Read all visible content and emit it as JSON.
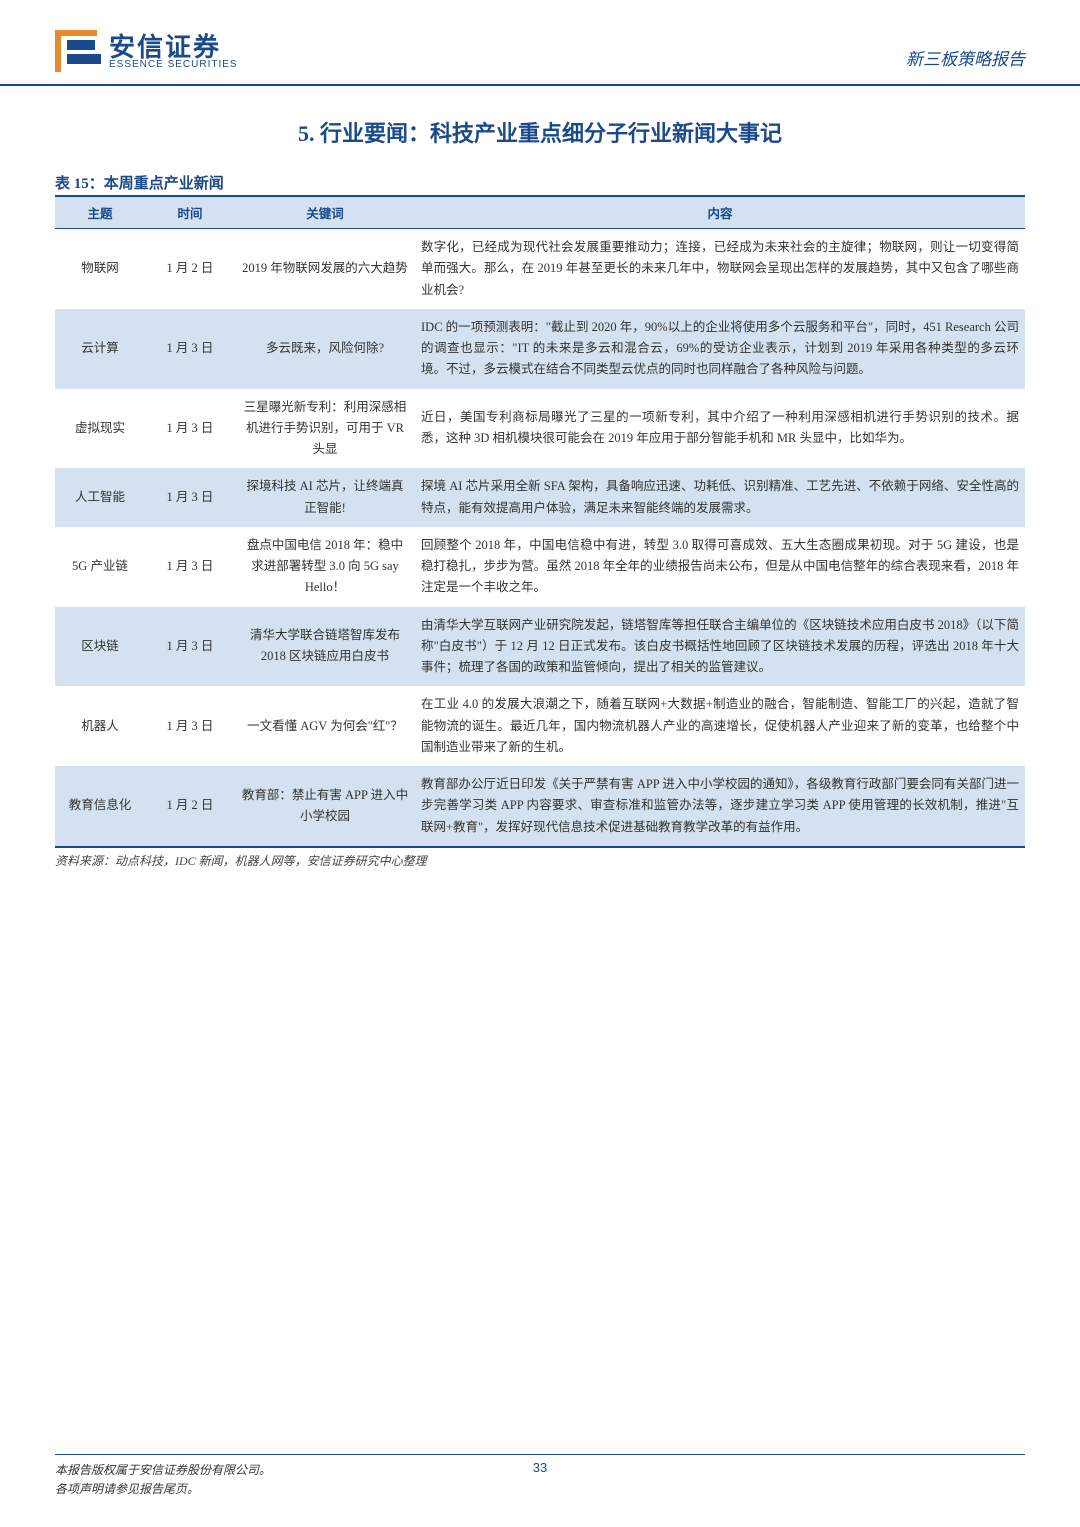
{
  "header": {
    "logo_cn": "安信证券",
    "logo_en": "ESSENCE SECURITIES",
    "doc_type": "新三板策略报告"
  },
  "section": {
    "number": "5.",
    "title": "行业要闻：科技产业重点细分子行业新闻大事记"
  },
  "table": {
    "caption_prefix": "表 15：",
    "caption": "本周重点产业新闻",
    "columns": [
      "主题",
      "时间",
      "关键词",
      "内容"
    ],
    "rows": [
      {
        "topic": "物联网",
        "date": "1 月 2 日",
        "keyword": "2019 年物联网发展的六大趋势",
        "content": "数字化，已经成为现代社会发展重要推动力；连接，已经成为未来社会的主旋律；物联网，则让一切变得简单而强大。那么，在 2019 年甚至更长的未来几年中，物联网会呈现出怎样的发展趋势，其中又包含了哪些商业机会?"
      },
      {
        "topic": "云计算",
        "date": "1 月 3 日",
        "keyword": "多云既来，风险何除?",
        "content": "IDC 的一项预测表明：\"截止到 2020 年，90%以上的企业将使用多个云服务和平台\"，同时，451 Research 公司的调查也显示：\"IT 的未来是多云和混合云，69%的受访企业表示，计划到 2019 年采用各种类型的多云环境。不过，多云模式在结合不同类型云优点的同时也同样融合了各种风险与问题。"
      },
      {
        "topic": "虚拟现实",
        "date": "1 月 3 日",
        "keyword": "三星曝光新专利：利用深感相机进行手势识别，可用于 VR 头显",
        "content": "近日，美国专利商标局曝光了三星的一项新专利，其中介绍了一种利用深感相机进行手势识别的技术。据悉，这种 3D 相机模块很可能会在 2019 年应用于部分智能手机和 MR 头显中，比如华为。"
      },
      {
        "topic": "人工智能",
        "date": "1 月 3 日",
        "keyword": "探境科技 AI 芯片，让终端真正智能!",
        "content": "探境 AI 芯片采用全新 SFA 架构，具备响应迅速、功耗低、识别精准、工艺先进、不依赖于网络、安全性高的特点，能有效提高用户体验，满足未来智能终端的发展需求。"
      },
      {
        "topic": "5G 产业链",
        "date": "1 月 3 日",
        "keyword": "盘点中国电信 2018 年：稳中求进部署转型 3.0 向 5G say Hello！",
        "content": "回顾整个 2018 年，中国电信稳中有进，转型 3.0 取得可喜成效、五大生态圈成果初现。对于 5G 建设，也是稳打稳扎，步步为营。虽然 2018 年全年的业绩报告尚未公布，但是从中国电信整年的综合表现来看，2018 年注定是一个丰收之年。"
      },
      {
        "topic": "区块链",
        "date": "1 月 3 日",
        "keyword": "清华大学联合链塔智库发布 2018 区块链应用白皮书",
        "content": "由清华大学互联网产业研究院发起，链塔智库等担任联合主编单位的《区块链技术应用白皮书 2018》（以下简称\"白皮书\"）于 12 月 12 日正式发布。该白皮书概括性地回顾了区块链技术发展的历程，评选出 2018 年十大事件；梳理了各国的政策和监管倾向，提出了相关的监管建议。"
      },
      {
        "topic": "机器人",
        "date": "1 月 3 日",
        "keyword": "一文看懂 AGV 为何会\"红\"？",
        "content": "在工业 4.0 的发展大浪潮之下，随着互联网+大数据+制造业的融合，智能制造、智能工厂的兴起，造就了智能物流的诞生。最近几年，国内物流机器人产业的高速增长，促使机器人产业迎来了新的变革，也给整个中国制造业带来了新的生机。"
      },
      {
        "topic": "教育信息化",
        "date": "1 月 2 日",
        "keyword": "教育部：禁止有害 APP 进入中小学校园",
        "content": "教育部办公厅近日印发《关于严禁有害 APP 进入中小学校园的通知》，各级教育行政部门要会同有关部门进一步完善学习类 APP 内容要求、审查标准和监管办法等，逐步建立学习类 APP 使用管理的长效机制，推进\"互联网+教育\"，发挥好现代信息技术促进基础教育教学改革的有益作用。"
      }
    ],
    "source": "资料来源：动点科技，IDC 新闻，机器人网等，安信证券研究中心整理"
  },
  "footer": {
    "line1": "本报告版权属于安信证券股份有限公司。",
    "line2": "各项声明请参见报告尾页。",
    "page_number": "33"
  },
  "colors": {
    "primary": "#1a4a8a",
    "accent": "#e88a2a",
    "row_alt_bg": "#d3e1f0"
  }
}
